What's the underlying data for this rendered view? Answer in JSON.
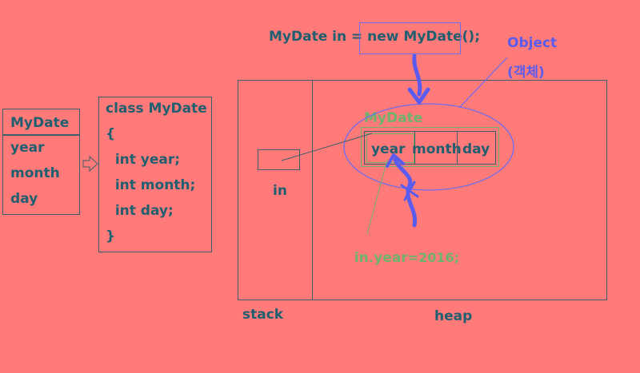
{
  "class_table": {
    "header": "MyDate",
    "fields": [
      "year",
      "month",
      "day"
    ]
  },
  "class_code": [
    "class MyDate",
    "{",
    "  int year;",
    "  int month;",
    "  int day;",
    "}"
  ],
  "statement": "MyDate in = new MyDate();",
  "object_label": {
    "line1": "Object",
    "line2": "(객체)"
  },
  "object_class_label": "MyDate",
  "object_fields": [
    "year",
    "month",
    "day"
  ],
  "variable_label": "in",
  "assignment": {
    "left": "in.year",
    "right": "=2016;"
  },
  "area_labels": {
    "stack": "stack",
    "heap": "heap"
  },
  "colors": {
    "background": "#ff7a78",
    "text": "#1f5f70",
    "object": "#5a5cf0",
    "green": "#6fb36a",
    "box": "#3c5e6a"
  }
}
